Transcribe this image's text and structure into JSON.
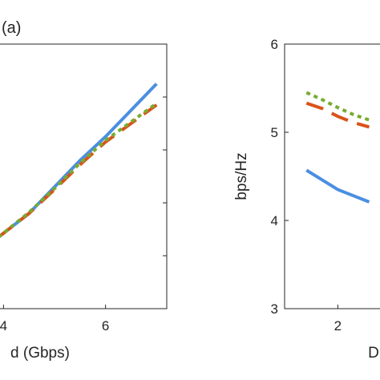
{
  "chart_data": [
    {
      "type": "line",
      "panel_label": "(a)",
      "xlabel": "d (Gbps)",
      "ylabel": "",
      "xticks": [
        4,
        6
      ],
      "xlim": [
        3.9,
        7.2
      ],
      "ylim": [
        0,
        5
      ],
      "grid": false,
      "series": [
        {
          "style": "solid",
          "color": "#4a8fe0",
          "x": [
            3.9,
            4.5,
            5.0,
            5.5,
            6.0,
            6.5,
            7.0
          ],
          "y": [
            1.35,
            1.8,
            2.3,
            2.8,
            3.25,
            3.75,
            4.25
          ]
        },
        {
          "style": "dashed",
          "color": "#d95319",
          "x": [
            3.9,
            4.5,
            5.0,
            5.5,
            6.0,
            6.5,
            7.0
          ],
          "y": [
            1.35,
            1.8,
            2.25,
            2.72,
            3.15,
            3.5,
            3.85
          ]
        },
        {
          "style": "dotted",
          "color": "#77ac30",
          "x": [
            3.9,
            4.5,
            5.0,
            5.5,
            6.0,
            6.5,
            7.0
          ],
          "y": [
            1.35,
            1.82,
            2.27,
            2.75,
            3.18,
            3.53,
            3.88
          ]
        }
      ]
    },
    {
      "type": "line",
      "xlabel": "D",
      "ylabel": "bps/Hz",
      "yticks": [
        "3",
        "4",
        "5",
        "6"
      ],
      "xticks": [
        "2"
      ],
      "xlim": [
        0.3,
        3.5
      ],
      "ylim": [
        3,
        6
      ],
      "grid": false,
      "series": [
        {
          "style": "solid",
          "color": "#4a8fe0",
          "x": [
            1.0,
            1.5,
            2.0,
            2.5,
            3.0
          ],
          "y": [
            4.57,
            4.46,
            4.35,
            4.28,
            4.21
          ]
        },
        {
          "style": "dashed",
          "color": "#d95319",
          "x": [
            1.0,
            1.5,
            2.0,
            2.5,
            3.0
          ],
          "y": [
            5.33,
            5.27,
            5.18,
            5.11,
            5.06
          ]
        },
        {
          "style": "dotted",
          "color": "#77ac30",
          "x": [
            1.0,
            1.5,
            2.0,
            2.5,
            3.0
          ],
          "y": [
            5.45,
            5.37,
            5.28,
            5.2,
            5.14
          ]
        }
      ]
    }
  ]
}
